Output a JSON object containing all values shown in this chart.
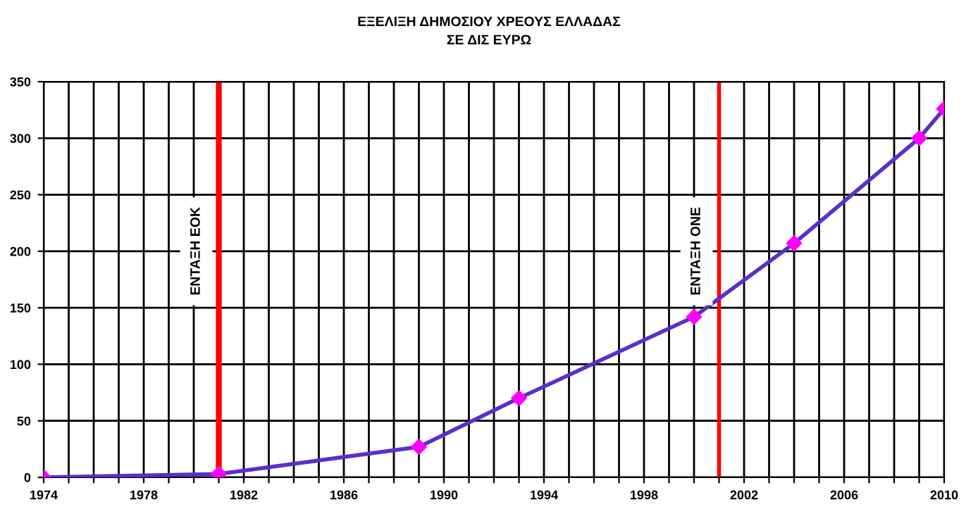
{
  "chart_data": {
    "type": "line",
    "title": "ΕΞΕΛΙΞΗ ΔΗΜΟΣΙΟΥ ΧΡΕΟΥΣ ΕΛΛΑΔΑΣ",
    "subtitle": "ΣΕ ΔΙΣ ΕΥΡΩ",
    "x": [
      1974,
      1981,
      1989,
      1993,
      2000,
      2004,
      2009,
      2010
    ],
    "series": [
      {
        "color": "#5b2fc9",
        "values": [
          0,
          3,
          27,
          70,
          142,
          207,
          300,
          326
        ]
      }
    ],
    "marker": "diamond",
    "line_style": "solid",
    "grid": true,
    "legend": false,
    "xlim": [
      1974,
      2010
    ],
    "ylim": [
      0,
      350
    ],
    "xticks": [
      1974,
      {
        "value": 1975,
        "label": null
      },
      {
        "value": 1976,
        "label": null
      },
      {
        "value": 1977,
        "label": null
      },
      1978,
      {
        "value": 1979,
        "label": null
      },
      {
        "value": 1980,
        "label": null
      },
      {
        "value": 1981,
        "label": null
      },
      1982,
      {
        "value": 1983,
        "label": null
      },
      {
        "value": 1984,
        "label": null
      },
      {
        "value": 1985,
        "label": null
      },
      1986,
      {
        "value": 1987,
        "label": null
      },
      {
        "value": 1988,
        "label": null
      },
      {
        "value": 1989,
        "label": null
      },
      1990,
      {
        "value": 1991,
        "label": null
      },
      {
        "value": 1992,
        "label": null
      },
      {
        "value": 1993,
        "label": null
      },
      1994,
      {
        "value": 1995,
        "label": null
      },
      {
        "value": 1996,
        "label": null
      },
      {
        "value": 1997,
        "label": null
      },
      1998,
      {
        "value": 1999,
        "label": null
      },
      {
        "value": 2000,
        "label": null
      },
      {
        "value": 2001,
        "label": null
      },
      2002,
      {
        "value": 2003,
        "label": null
      },
      {
        "value": 2004,
        "label": null
      },
      {
        "value": 2005,
        "label": null
      },
      2006,
      {
        "value": 2007,
        "label": null
      },
      {
        "value": 2008,
        "label": null
      },
      {
        "value": 2009,
        "label": null
      },
      2010
    ],
    "yticks": [
      0,
      50,
      100,
      150,
      200,
      250,
      300,
      350
    ],
    "ref_lines": [
      {
        "axis": "x",
        "value": 1981,
        "label": "ΕΝΤΑΞΗ ΕΟΚ",
        "color": "#ff0000"
      },
      {
        "axis": "x",
        "value": 2001,
        "label": "ΕΝΤΑΞΗ ΟΝΕ",
        "color": "#ff0000"
      }
    ]
  }
}
